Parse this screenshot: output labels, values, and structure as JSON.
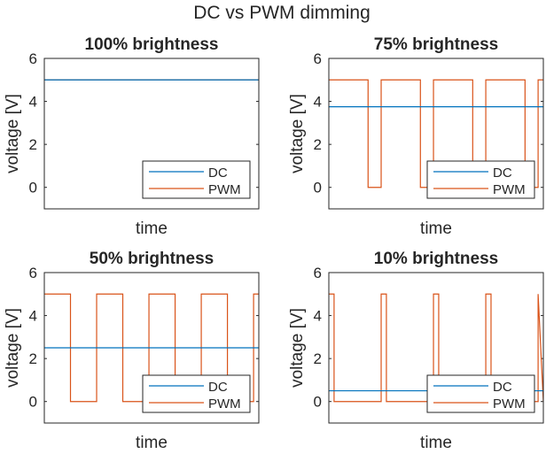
{
  "title": "DC vs PWM dimming",
  "colors": {
    "dc": "#0072BD",
    "pwm": "#D95319",
    "axis": "#262626"
  },
  "chart_data": [
    {
      "type": "line",
      "title": "100% brightness",
      "xlabel": "time",
      "ylabel": "voltage [V]",
      "ylim": [
        -1,
        6
      ],
      "yticks": [
        0,
        2,
        4,
        6
      ],
      "xlim": [
        0,
        4.1
      ],
      "period": 1,
      "duty": 1.0,
      "high": 5,
      "dc_level": 5.0,
      "legend": "bottom-right",
      "grid": false,
      "series": [
        {
          "name": "DC"
        },
        {
          "name": "PWM"
        }
      ]
    },
    {
      "type": "line",
      "title": "75% brightness",
      "xlabel": "time",
      "ylabel": "voltage [V]",
      "ylim": [
        -1,
        6
      ],
      "yticks": [
        0,
        2,
        4,
        6
      ],
      "xlim": [
        0,
        4.1
      ],
      "period": 1,
      "duty": 0.75,
      "high": 5,
      "dc_level": 3.75,
      "legend": "bottom-right",
      "grid": false,
      "series": [
        {
          "name": "DC"
        },
        {
          "name": "PWM"
        }
      ]
    },
    {
      "type": "line",
      "title": "50% brightness",
      "xlabel": "time",
      "ylabel": "voltage [V]",
      "ylim": [
        -1,
        6
      ],
      "yticks": [
        0,
        2,
        4,
        6
      ],
      "xlim": [
        0,
        4.1
      ],
      "period": 1,
      "duty": 0.5,
      "high": 5,
      "dc_level": 2.5,
      "legend": "bottom-right",
      "grid": false,
      "series": [
        {
          "name": "DC"
        },
        {
          "name": "PWM"
        }
      ]
    },
    {
      "type": "line",
      "title": "10% brightness",
      "xlabel": "time",
      "ylabel": "voltage [V]",
      "ylim": [
        -1,
        6
      ],
      "yticks": [
        0,
        2,
        4,
        6
      ],
      "xlim": [
        0,
        4.1
      ],
      "period": 1,
      "duty": 0.1,
      "high": 5,
      "dc_level": 0.5,
      "legend": "bottom-right",
      "grid": false,
      "series": [
        {
          "name": "DC"
        },
        {
          "name": "PWM"
        }
      ]
    }
  ]
}
